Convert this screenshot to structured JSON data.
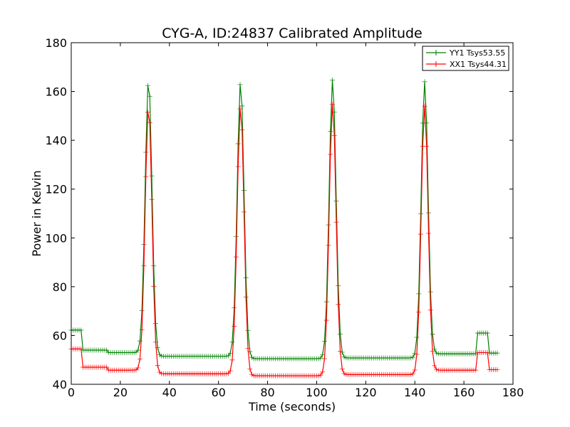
{
  "chart_data": {
    "type": "line",
    "title": "CYG-A, ID:24837 Calibrated Amplitude",
    "xlabel": "Time (seconds)",
    "ylabel": "Power in Kelvin",
    "xlim": [
      0,
      180
    ],
    "ylim": [
      40,
      180
    ],
    "xticks": [
      "0",
      "20",
      "40",
      "60",
      "80",
      "100",
      "120",
      "140",
      "160",
      "180"
    ],
    "yticks": [
      "40",
      "60",
      "80",
      "100",
      "120",
      "140",
      "160",
      "180"
    ],
    "grid": false,
    "legend": "top-right",
    "series": [
      {
        "name": "YY1 Tsys53.55",
        "color": "#008000",
        "baseline": [
          {
            "x0": 0,
            "x1": 4,
            "y": 62.2
          },
          {
            "x0": 4,
            "x1": 15,
            "y": 54.0
          },
          {
            "x0": 15,
            "x1": 27,
            "y": 53.0
          },
          {
            "x0": 35.5,
            "x1": 65,
            "y": 51.5
          },
          {
            "x0": 73,
            "x1": 102,
            "y": 50.5
          },
          {
            "x0": 111,
            "x1": 140,
            "y": 50.8
          },
          {
            "x0": 148,
            "x1": 165,
            "y": 52.5
          },
          {
            "x0": 165,
            "x1": 170,
            "y": 61.0
          },
          {
            "x0": 170,
            "x1": 174,
            "y": 52.8
          }
        ],
        "peaks": [
          {
            "x": 31.5,
            "y": 165
          },
          {
            "x": 69.0,
            "y": 164
          },
          {
            "x": 106.5,
            "y": 165
          },
          {
            "x": 144.0,
            "y": 164
          }
        ]
      },
      {
        "name": "XX1 Tsys44.31",
        "color": "#ff0000",
        "baseline": [
          {
            "x0": 0,
            "x1": 4,
            "y": 54.5
          },
          {
            "x0": 4,
            "x1": 15,
            "y": 47.0
          },
          {
            "x0": 15,
            "x1": 27,
            "y": 45.8
          },
          {
            "x0": 35.5,
            "x1": 65,
            "y": 44.3
          },
          {
            "x0": 73,
            "x1": 102,
            "y": 43.5
          },
          {
            "x0": 111,
            "x1": 140,
            "y": 44.0
          },
          {
            "x0": 148,
            "x1": 165,
            "y": 45.8
          },
          {
            "x0": 165,
            "x1": 170,
            "y": 53.0
          },
          {
            "x0": 170,
            "x1": 174,
            "y": 46.0
          }
        ],
        "peaks": [
          {
            "x": 31.5,
            "y": 154
          },
          {
            "x": 69.0,
            "y": 154
          },
          {
            "x": 106.5,
            "y": 155
          },
          {
            "x": 144.0,
            "y": 154
          }
        ]
      }
    ]
  }
}
